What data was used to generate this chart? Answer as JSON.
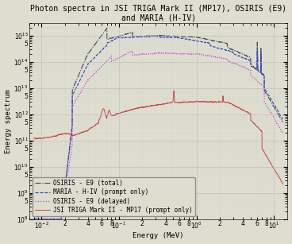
{
  "title": "Photon spectra in JSI TRIGA Mark II (MP17), OSIRIS (E9)\nand MARIA (H-IV)",
  "xlabel": "Energy (MeV)",
  "ylabel": "Energy spectrum",
  "xlim": [
    0.007,
    15
  ],
  "ylim": [
    100000000.0,
    3000000000000000.0
  ],
  "background_color": "#ddddd0",
  "grid_color": "#bbbbbb",
  "title_fontsize": 7.0,
  "label_fontsize": 6.5,
  "tick_fontsize": 5.5,
  "legend_fontsize": 5.5,
  "lines": [
    {
      "label": "JSI TRIGA Mark II - MP17 (prompt only)",
      "color": "#cc4444",
      "linestyle": "solid",
      "linewidth": 0.7
    },
    {
      "label": "MARIA - H-IV (prompt only)",
      "color": "#3344cc",
      "linestyle": "dashed",
      "linewidth": 0.8
    },
    {
      "label": "OSIRIS - E9 (delayed)",
      "color": "#cc44cc",
      "linestyle": "dotted",
      "linewidth": 0.9
    },
    {
      "label": "OSIRIS - E9 (total)",
      "color": "#444444",
      "linestyle": "dashdot",
      "linewidth": 0.8
    }
  ]
}
